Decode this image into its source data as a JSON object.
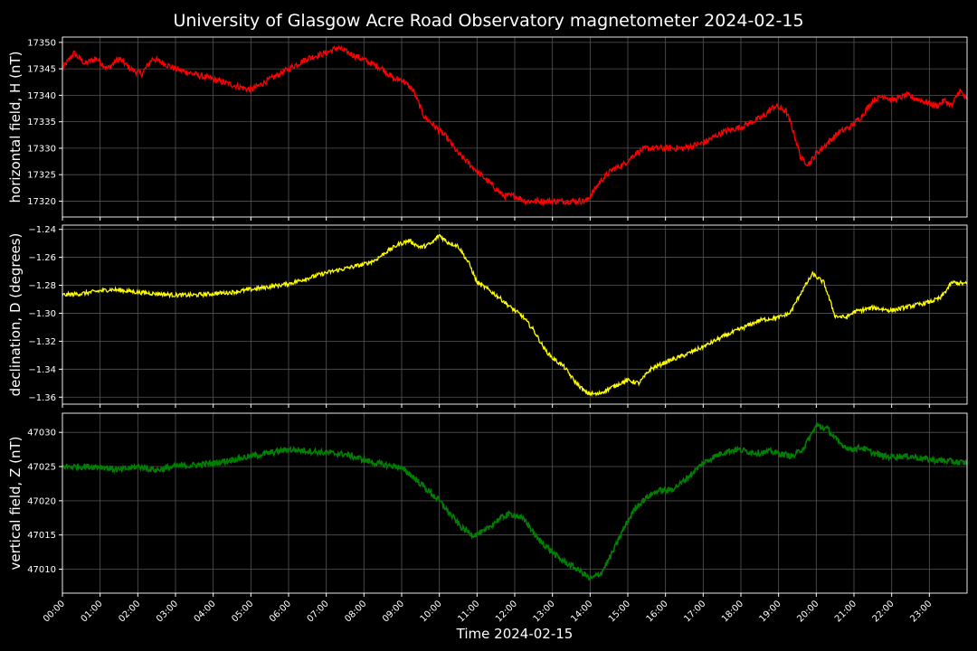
{
  "chart_data": {
    "title": "University of Glasgow Acre Road Observatory magnetometer 2024-02-15",
    "xlabel": "Time 2024-02-15",
    "x_ticks": [
      "00:00",
      "01:00",
      "02:00",
      "03:00",
      "04:00",
      "05:00",
      "06:00",
      "07:00",
      "08:00",
      "09:00",
      "10:00",
      "11:00",
      "12:00",
      "13:00",
      "14:00",
      "15:00",
      "16:00",
      "17:00",
      "18:00",
      "19:00",
      "20:00",
      "21:00",
      "22:00",
      "23:00"
    ],
    "x_unit": "hour",
    "xlim": [
      0,
      24
    ],
    "grid": true,
    "panels": [
      {
        "type": "line",
        "ylabel": "horizontal field, H (nT)",
        "color": "#ff0000",
        "ylim": [
          17317,
          17351
        ],
        "yticks": [
          17320,
          17325,
          17330,
          17335,
          17340,
          17345,
          17350
        ],
        "decimals": 0,
        "noise": 0.6,
        "x": [
          0,
          0.3,
          0.6,
          0.9,
          1.2,
          1.5,
          1.8,
          2.1,
          2.4,
          2.7,
          3.0,
          3.5,
          4.0,
          4.5,
          5.0,
          5.5,
          6.0,
          6.5,
          7.0,
          7.3,
          7.6,
          7.9,
          8.2,
          8.5,
          8.8,
          9.0,
          9.3,
          9.6,
          9.9,
          10.2,
          10.5,
          10.8,
          11.1,
          11.4,
          11.7,
          12.0,
          12.3,
          12.6,
          13.0,
          13.3,
          13.6,
          13.9,
          14.0,
          14.3,
          14.6,
          14.9,
          15.2,
          15.5,
          15.8,
          16.1,
          16.5,
          17.0,
          17.5,
          18.0,
          18.3,
          18.6,
          18.9,
          19.2,
          19.4,
          19.6,
          19.8,
          20.0,
          20.3,
          20.6,
          20.9,
          21.2,
          21.5,
          21.8,
          22.0,
          22.4,
          22.8,
          23.2,
          23.4,
          23.6,
          23.8,
          24.0
        ],
        "y": [
          17345,
          17348,
          17346,
          17347,
          17345,
          17347,
          17345,
          17344,
          17347,
          17346,
          17345,
          17344,
          17343,
          17342,
          17341,
          17343,
          17345,
          17347,
          17348,
          17349,
          17348,
          17347,
          17346,
          17345,
          17343,
          17343,
          17341,
          17336,
          17334,
          17332,
          17329,
          17327,
          17325,
          17323,
          17321,
          17321,
          17320,
          17320,
          17320,
          17320,
          17320,
          17320,
          17321,
          17324,
          17326,
          17327,
          17329,
          17330,
          17330,
          17330,
          17330,
          17331,
          17333,
          17334,
          17335,
          17336,
          17338,
          17337,
          17333,
          17328,
          17327,
          17329,
          17331,
          17333,
          17334,
          17336,
          17339,
          17340,
          17339,
          17340,
          17339,
          17338,
          17339,
          17338,
          17341,
          17339
        ]
      },
      {
        "type": "line",
        "ylabel": "declination, D (degrees)",
        "color": "#ffff00",
        "ylim": [
          -1.365,
          -1.237
        ],
        "yticks": [
          -1.36,
          -1.34,
          -1.32,
          -1.3,
          -1.28,
          -1.26,
          -1.24
        ],
        "decimals": 2,
        "noise": 0.0015,
        "x": [
          0,
          0.5,
          1.0,
          1.3,
          1.7,
          2.0,
          2.5,
          3.0,
          3.5,
          4.0,
          4.5,
          5.0,
          5.5,
          6.0,
          6.5,
          7.0,
          7.5,
          8.0,
          8.3,
          8.6,
          8.9,
          9.2,
          9.5,
          9.8,
          10.0,
          10.2,
          10.5,
          10.8,
          11.0,
          11.3,
          11.6,
          11.9,
          12.2,
          12.5,
          12.8,
          13.0,
          13.3,
          13.6,
          13.9,
          14.2,
          14.5,
          14.8,
          15.0,
          15.3,
          15.6,
          16.0,
          16.5,
          17.0,
          17.5,
          18.0,
          18.5,
          19.0,
          19.3,
          19.6,
          19.9,
          20.2,
          20.5,
          20.8,
          21.0,
          21.5,
          22.0,
          22.5,
          23.0,
          23.3,
          23.6,
          24.0
        ],
        "y": [
          -1.287,
          -1.286,
          -1.284,
          -1.283,
          -1.284,
          -1.285,
          -1.286,
          -1.287,
          -1.287,
          -1.286,
          -1.285,
          -1.283,
          -1.281,
          -1.279,
          -1.275,
          -1.271,
          -1.268,
          -1.265,
          -1.262,
          -1.256,
          -1.251,
          -1.248,
          -1.253,
          -1.25,
          -1.244,
          -1.249,
          -1.252,
          -1.265,
          -1.278,
          -1.283,
          -1.289,
          -1.296,
          -1.302,
          -1.312,
          -1.326,
          -1.332,
          -1.338,
          -1.349,
          -1.357,
          -1.358,
          -1.354,
          -1.35,
          -1.348,
          -1.35,
          -1.34,
          -1.335,
          -1.33,
          -1.324,
          -1.317,
          -1.311,
          -1.305,
          -1.303,
          -1.3,
          -1.285,
          -1.272,
          -1.278,
          -1.302,
          -1.303,
          -1.299,
          -1.296,
          -1.298,
          -1.295,
          -1.292,
          -1.289,
          -1.278,
          -1.279
        ]
      },
      {
        "type": "line",
        "ylabel": "vertical field, Z (nT)",
        "color": "#008000",
        "ylim": [
          47006.5,
          47032.8
        ],
        "yticks": [
          47010,
          47015,
          47020,
          47025,
          47030
        ],
        "decimals": 0,
        "noise": 0.45,
        "x": [
          0,
          0.5,
          1.0,
          1.5,
          2.0,
          2.5,
          3.0,
          3.5,
          4.0,
          4.5,
          5.0,
          5.5,
          6.0,
          6.5,
          7.0,
          7.5,
          8.0,
          8.3,
          8.6,
          8.9,
          9.2,
          9.5,
          9.8,
          10.0,
          10.3,
          10.6,
          10.9,
          11.2,
          11.5,
          11.8,
          12.0,
          12.3,
          12.6,
          12.9,
          13.2,
          13.5,
          13.8,
          14.0,
          14.3,
          14.6,
          14.9,
          15.2,
          15.5,
          15.8,
          16.1,
          16.4,
          16.7,
          17.0,
          17.3,
          17.6,
          17.9,
          18.2,
          18.5,
          18.8,
          19.1,
          19.4,
          19.7,
          20.0,
          20.3,
          20.6,
          20.9,
          21.2,
          21.5,
          21.8,
          22.1,
          22.5,
          23.0,
          23.5,
          24.0
        ],
        "y": [
          47025,
          47025,
          47025,
          47024.5,
          47025,
          47024.5,
          47025,
          47025.2,
          47025.5,
          47026,
          47026.5,
          47027,
          47027.5,
          47027.3,
          47027,
          47026.8,
          47026,
          47025.5,
          47025.2,
          47025,
          47024,
          47022.5,
          47021,
          47020,
          47018,
          47016,
          47015,
          47015.5,
          47017,
          47018,
          47018,
          47017,
          47014.5,
          47013,
          47011.5,
          47010.5,
          47009.5,
          47008.5,
          47009.5,
          47012.5,
          47016,
          47019,
          47020.5,
          47021.5,
          47021.5,
          47022.5,
          47024,
          47025.5,
          47026.5,
          47027.2,
          47027.5,
          47027.2,
          47027,
          47027.2,
          47026.8,
          47026.5,
          47028,
          47031,
          47030.5,
          47028.5,
          47027.5,
          47027.8,
          47027,
          47026.5,
          47026.5,
          47026.5,
          47026,
          47025.8,
          47025.5
        ]
      }
    ]
  }
}
